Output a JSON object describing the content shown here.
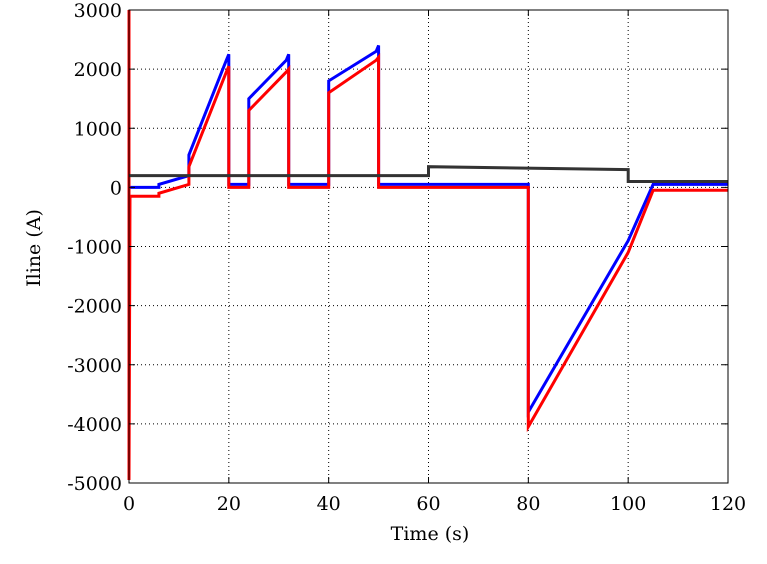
{
  "chart_data": {
    "type": "line",
    "title": "",
    "xlabel": "Time (s)",
    "ylabel": "Iline (A)",
    "xlim": [
      0,
      120
    ],
    "ylim": [
      -5000,
      3000
    ],
    "x_ticks": [
      0,
      20,
      40,
      60,
      80,
      100,
      120
    ],
    "x_tick_labels": [
      "0",
      "20",
      "40",
      "60",
      "80",
      "100",
      "120"
    ],
    "y_ticks": [
      -5000,
      -4000,
      -3000,
      -2000,
      -1000,
      0,
      1000,
      2000,
      3000
    ],
    "y_tick_labels": [
      "-5000",
      "-4000",
      "-3000",
      "-2000",
      "-1000",
      "0",
      "1000",
      "2000",
      "3000"
    ],
    "grid": true,
    "grid_style": "dotted",
    "series": [
      {
        "color": "#0000ff",
        "x": [
          0,
          0,
          0.2,
          6,
          6,
          12,
          12,
          19.5,
          20,
          20,
          23.5,
          24,
          24,
          31.5,
          32,
          32,
          39.5,
          40,
          40,
          49.5,
          50,
          50,
          80,
          80,
          100,
          105,
          120
        ],
        "y": [
          -2500,
          0,
          0,
          0,
          50,
          200,
          550,
          2150,
          2250,
          50,
          50,
          50,
          1500,
          2150,
          2250,
          50,
          50,
          50,
          1800,
          2300,
          2400,
          50,
          50,
          -3800,
          -900,
          50,
          50
        ]
      },
      {
        "color": "#ff0000",
        "x": [
          0,
          0,
          0.2,
          6,
          6,
          12,
          12,
          19.5,
          20,
          20,
          23.5,
          24,
          24,
          31.5,
          32,
          32,
          39.5,
          40,
          40,
          49.5,
          50,
          50,
          80,
          80,
          100,
          105,
          120
        ],
        "y": [
          3000,
          -4950,
          -150,
          -150,
          -100,
          50,
          350,
          1950,
          2050,
          0,
          0,
          0,
          1300,
          1950,
          2000,
          0,
          0,
          0,
          1600,
          2150,
          2200,
          0,
          0,
          -4050,
          -1100,
          -50,
          -50
        ]
      },
      {
        "color": "#333333",
        "x": [
          0,
          60,
          60,
          100,
          100,
          120
        ],
        "y": [
          200,
          200,
          350,
          300,
          100,
          100
        ]
      }
    ]
  }
}
